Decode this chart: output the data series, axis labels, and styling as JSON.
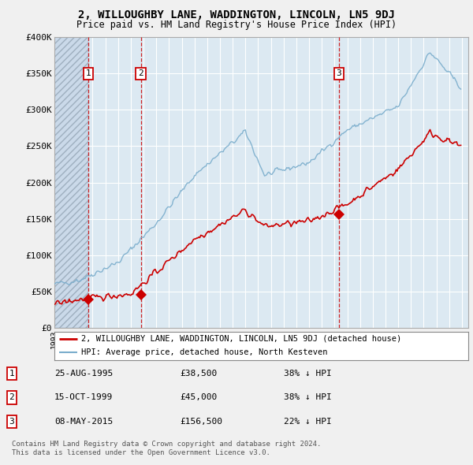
{
  "title": "2, WILLOUGHBY LANE, WADDINGTON, LINCOLN, LN5 9DJ",
  "subtitle": "Price paid vs. HM Land Registry's House Price Index (HPI)",
  "legend_line1": "2, WILLOUGHBY LANE, WADDINGTON, LINCOLN, LN5 9DJ (detached house)",
  "legend_line2": "HPI: Average price, detached house, North Kesteven",
  "footer1": "Contains HM Land Registry data © Crown copyright and database right 2024.",
  "footer2": "This data is licensed under the Open Government Licence v3.0.",
  "ylim": [
    0,
    400000
  ],
  "yticks": [
    0,
    50000,
    100000,
    150000,
    200000,
    250000,
    300000,
    350000,
    400000
  ],
  "ytick_labels": [
    "£0",
    "£50K",
    "£100K",
    "£150K",
    "£200K",
    "£250K",
    "£300K",
    "£350K",
    "£400K"
  ],
  "xlim_start": 1993.0,
  "xlim_end": 2025.5,
  "transactions": [
    {
      "date": "25-AUG-1995",
      "year": 1995.646,
      "price": 38500,
      "label": "1"
    },
    {
      "date": "15-OCT-1999",
      "year": 1999.788,
      "price": 45000,
      "label": "2"
    },
    {
      "date": "08-MAY-2015",
      "year": 2015.353,
      "price": 156500,
      "label": "3"
    }
  ],
  "transaction_color": "#cc0000",
  "hpi_color": "#7aadcc",
  "bg_color": "#dce9f2",
  "grid_color": "#ffffff",
  "fig_bg": "#f0f0f0",
  "row_data": [
    [
      "1",
      "25-AUG-1995",
      "£38,500",
      "38% ↓ HPI"
    ],
    [
      "2",
      "15-OCT-1999",
      "£45,000",
      "38% ↓ HPI"
    ],
    [
      "3",
      "08-MAY-2015",
      "£156,500",
      "22% ↓ HPI"
    ]
  ]
}
